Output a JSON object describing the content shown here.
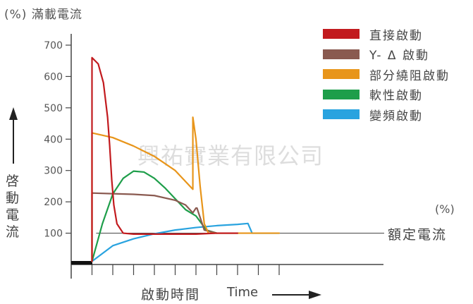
{
  "chart_data": {
    "type": "line",
    "ylabel_top": "(%) 滿載電流",
    "ylabel_vertical": "啓動電流",
    "xlabel": "啟動時間",
    "xlabel_en": "Time",
    "right_unit": "(%)",
    "reference_label": "額定電流",
    "watermark": "興祐實業有限公司",
    "ylim": [
      0,
      750
    ],
    "yticks": [
      "100",
      "200",
      "300",
      "400",
      "500",
      "600",
      "700"
    ],
    "ytick_values": [
      100,
      200,
      300,
      400,
      500,
      600,
      700
    ],
    "xlim": [
      0,
      10
    ],
    "xticks": [
      1,
      2,
      3,
      4,
      5,
      6,
      7,
      8,
      9,
      10
    ],
    "reference_value": 100,
    "grid": false,
    "legend_position": "top-right",
    "series": [
      {
        "name": "直接啟動",
        "color": "#c21a1e",
        "x": [
          1.0,
          1.0,
          1.3,
          1.55,
          1.75,
          1.85,
          1.95,
          2.05,
          2.2,
          2.5,
          3.0,
          4.0,
          5.0,
          6.0,
          7.0,
          8.0
        ],
        "y": [
          10,
          660,
          640,
          580,
          470,
          380,
          270,
          190,
          130,
          100,
          97,
          97,
          97,
          97,
          100,
          100
        ]
      },
      {
        "name": "Y- Δ 啟動",
        "color": "#8a5a50",
        "x": [
          1.0,
          1.0,
          2.0,
          3.0,
          4.0,
          5.0,
          5.5,
          5.85,
          6.0,
          6.05,
          6.1,
          6.4,
          7.0,
          8.0
        ],
        "y": [
          10,
          228,
          226,
          224,
          220,
          205,
          190,
          165,
          180,
          180,
          170,
          110,
          100,
          100
        ]
      },
      {
        "name": "部分繞阻啟動",
        "color": "#e8951a",
        "x": [
          1.0,
          1.0,
          2.0,
          3.0,
          4.0,
          5.0,
          5.85,
          5.85,
          6.0,
          6.2,
          6.4,
          6.6,
          7.0,
          8.0,
          9.0,
          10.0
        ],
        "y": [
          10,
          420,
          405,
          378,
          345,
          300,
          240,
          470,
          400,
          250,
          130,
          100,
          100,
          100,
          100,
          100
        ]
      },
      {
        "name": "軟性啟動",
        "color": "#1e9e4a",
        "x": [
          1.0,
          1.5,
          2.0,
          2.5,
          3.0,
          3.5,
          4.0,
          4.5,
          5.0,
          5.5,
          6.0,
          6.5,
          7.0
        ],
        "y": [
          10,
          130,
          225,
          275,
          298,
          295,
          275,
          245,
          210,
          175,
          155,
          110,
          100
        ]
      },
      {
        "name": "變頻啟動",
        "color": "#29a3df",
        "x": [
          1.0,
          2.0,
          3.0,
          4.0,
          5.0,
          6.0,
          7.0,
          8.0,
          8.5,
          8.7,
          9.0,
          10.0
        ],
        "y": [
          10,
          60,
          82,
          98,
          110,
          118,
          124,
          128,
          131,
          100,
          100,
          100
        ]
      }
    ]
  }
}
